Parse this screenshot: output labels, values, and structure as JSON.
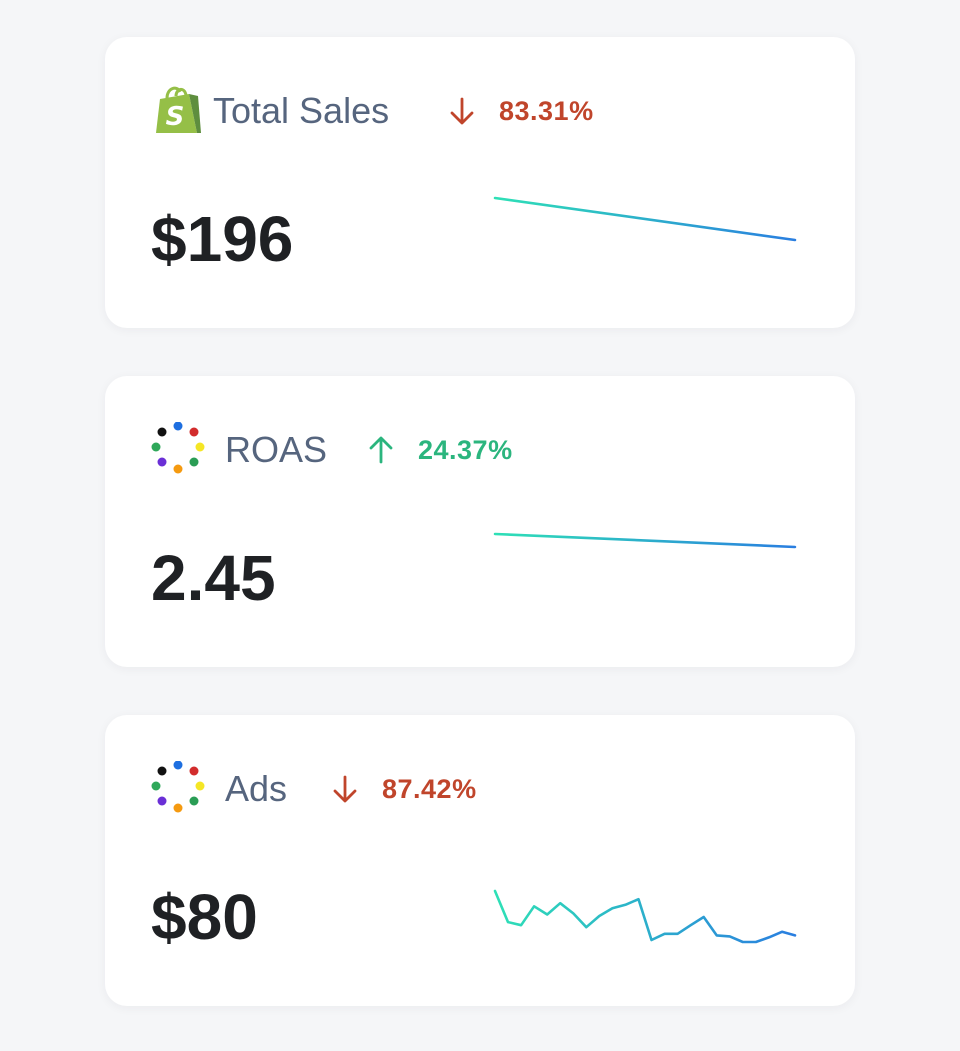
{
  "colors": {
    "down": "#c0452b",
    "up": "#2bb57e",
    "spark_start": "#2ee0b6",
    "spark_end": "#2a7ee0",
    "shopify_green": "#95bf47",
    "shopify_dark": "#5e8e3e"
  },
  "cards": [
    {
      "id": "total-sales",
      "icon": "shopify-bag-icon",
      "title": "Total Sales",
      "trend": "down",
      "trend_icon": "arrow-down-icon",
      "change": "83.31%",
      "value": "$196",
      "sparkline": [
        1.0,
        0.0
      ]
    },
    {
      "id": "roas",
      "icon": "dot-ring-icon",
      "title": "ROAS",
      "trend": "up",
      "trend_icon": "arrow-up-icon",
      "change": "24.37%",
      "value": "2.45",
      "sparkline": [
        1.0,
        0.0
      ]
    },
    {
      "id": "ads",
      "icon": "dot-ring-icon",
      "title": "Ads",
      "trend": "down",
      "trend_icon": "arrow-down-icon",
      "change": "87.42%",
      "value": "$80",
      "sparkline": [
        1.0,
        0.39,
        0.33,
        0.7,
        0.54,
        0.76,
        0.56,
        0.29,
        0.51,
        0.66,
        0.73,
        0.84,
        0.04,
        0.16,
        0.16,
        0.33,
        0.49,
        0.13,
        0.11,
        0.0,
        0.0,
        0.09,
        0.2,
        0.13
      ]
    }
  ]
}
